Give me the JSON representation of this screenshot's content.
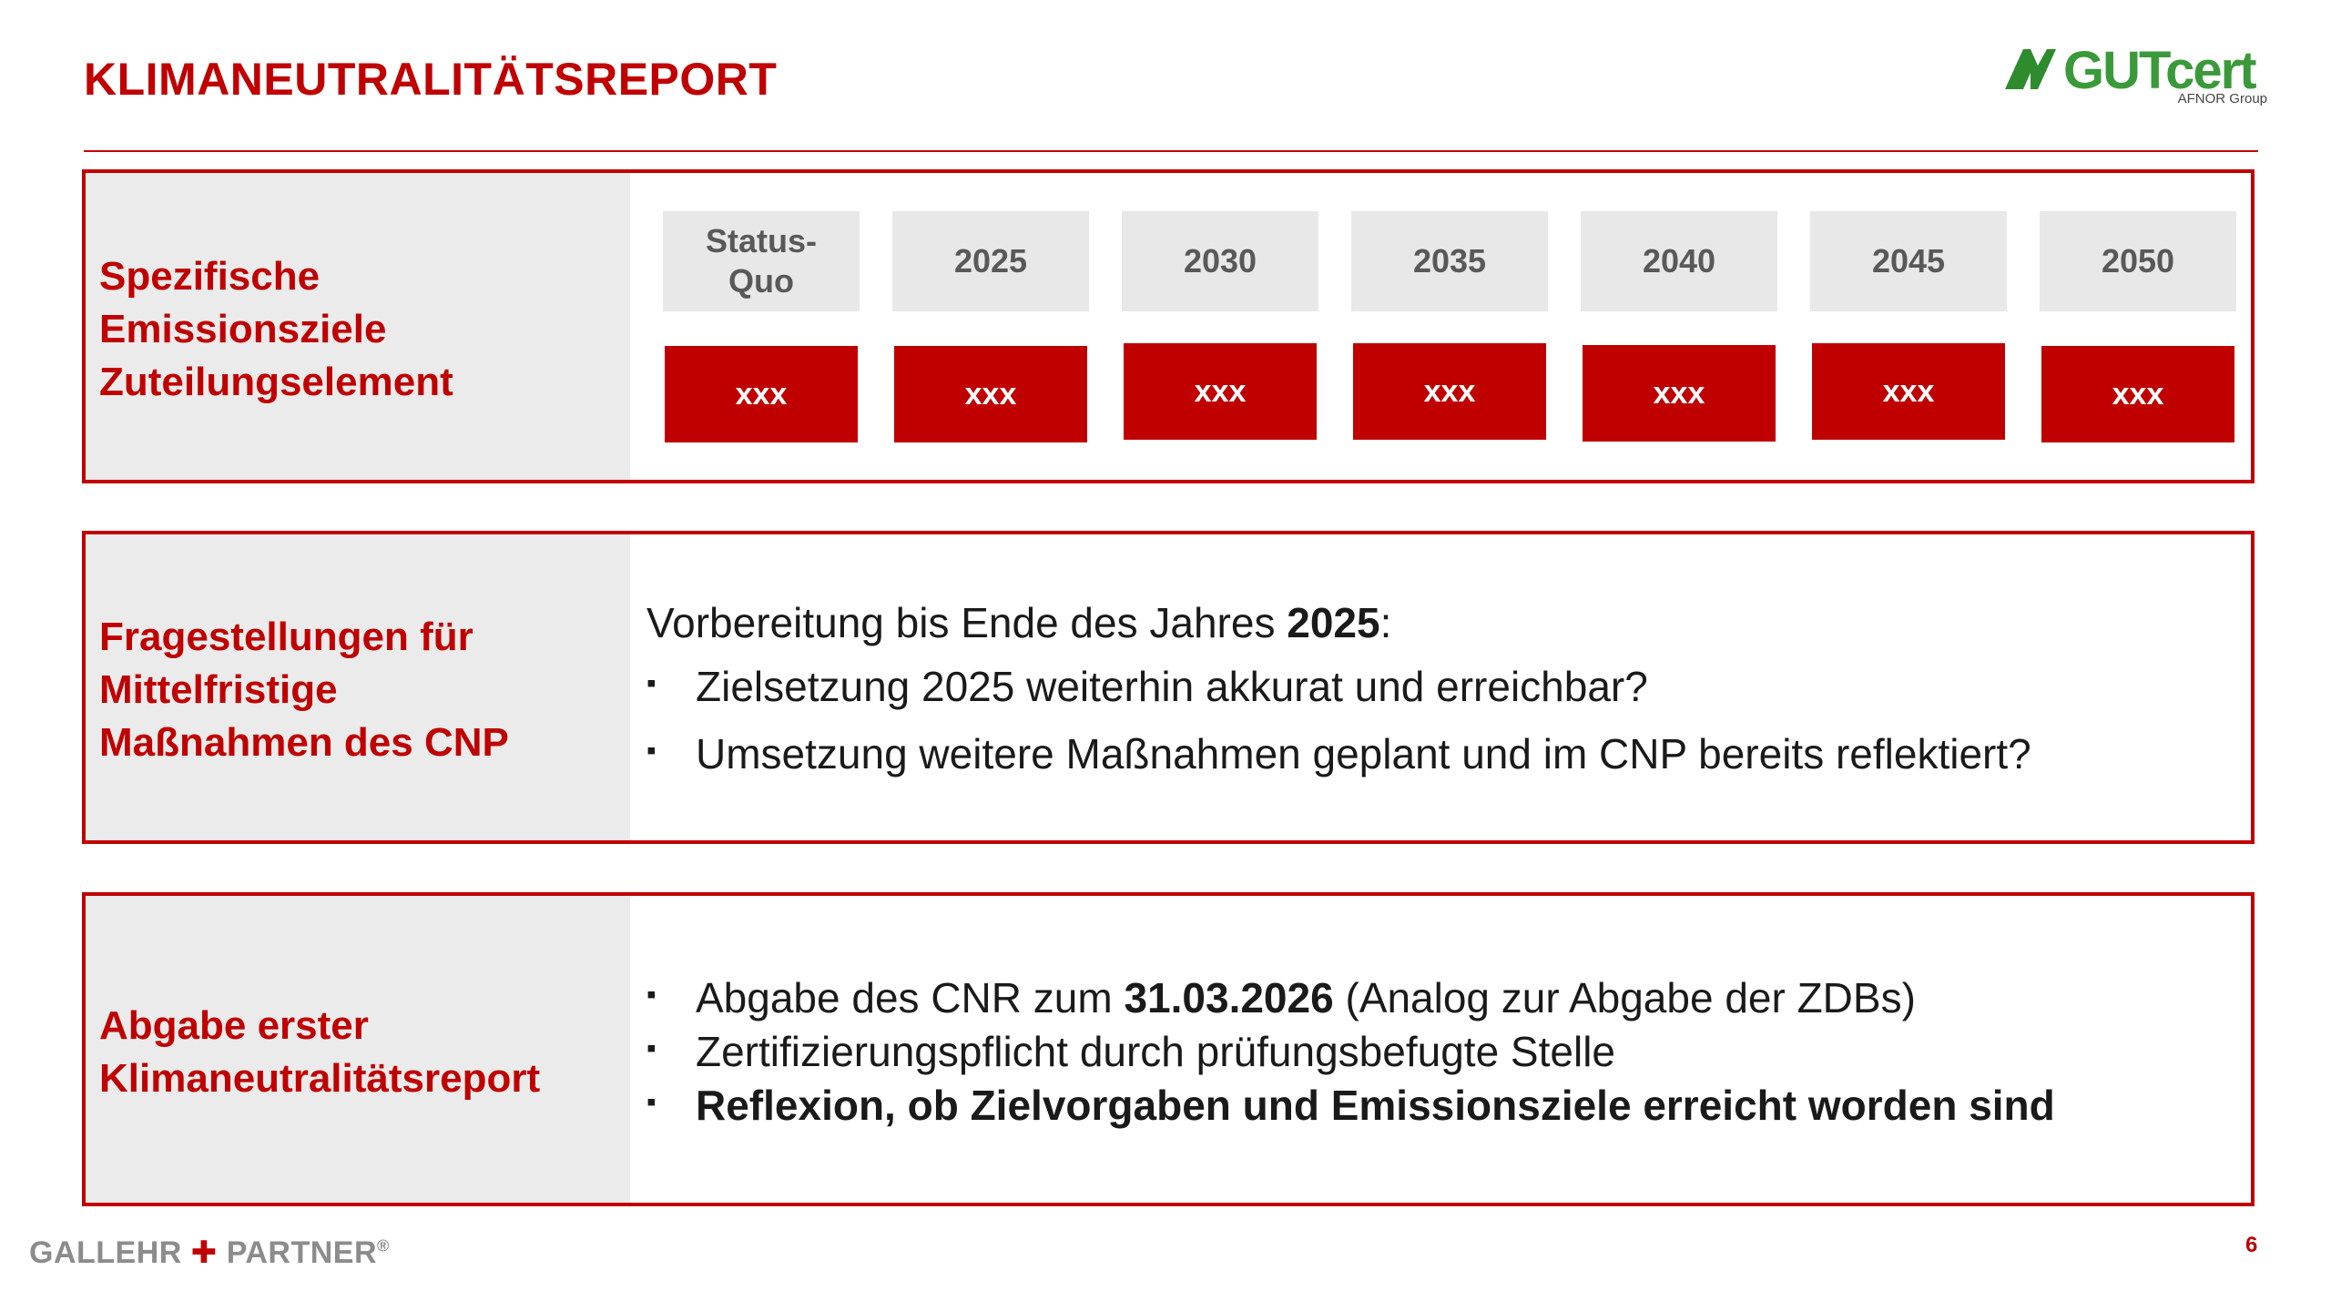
{
  "header": {
    "title": "KLIMANEUTRALITÄTSREPORT",
    "logo_text": "GUTcert",
    "logo_sub": "AFNOR Group"
  },
  "panel1": {
    "label": "Spezifische\nEmissionsziele\nZuteilungselement",
    "years": [
      "Status-\nQuo",
      "2025",
      "2030",
      "2035",
      "2040",
      "2045",
      "2050"
    ],
    "values": [
      "xxx",
      "xxx",
      "xxx",
      "xxx",
      "xxx",
      "xxx",
      "xxx"
    ]
  },
  "panel2": {
    "label": "Fragestellungen für\nMittelfristige\nMaßnahmen des CNP",
    "intro_pre": "Vorbereitung bis Ende des Jahres ",
    "intro_bold": "2025",
    "intro_post": ":",
    "bullets": [
      "Zielsetzung 2025 weiterhin akkurat und erreichbar?",
      "Umsetzung weitere Maßnahmen geplant und im CNP bereits reflektiert?"
    ]
  },
  "panel3": {
    "label": "Abgabe erster\nKlimaneutralitätsreport",
    "bullet1_pre": "Abgabe des CNR zum ",
    "bullet1_bold": "31.03.2026",
    "bullet1_post": " (Analog zur Abgabe der ZDBs)",
    "bullet2": "Zertifizierungspflicht durch prüfungsbefugte Stelle",
    "bullet3": "Reflexion, ob Zielvorgaben und Emissionsziele erreicht worden sind"
  },
  "footer": {
    "brand_left": "GALLEHR ",
    "brand_plus": "✚",
    "brand_right": " PARTNER",
    "brand_reg": "®",
    "page_number": "6"
  },
  "colors": {
    "accent": "#c00000",
    "panel_side_bg": "#ebebeb",
    "year_cell_bg": "#e8e8e8",
    "logo_green": "#3a9a3a"
  }
}
